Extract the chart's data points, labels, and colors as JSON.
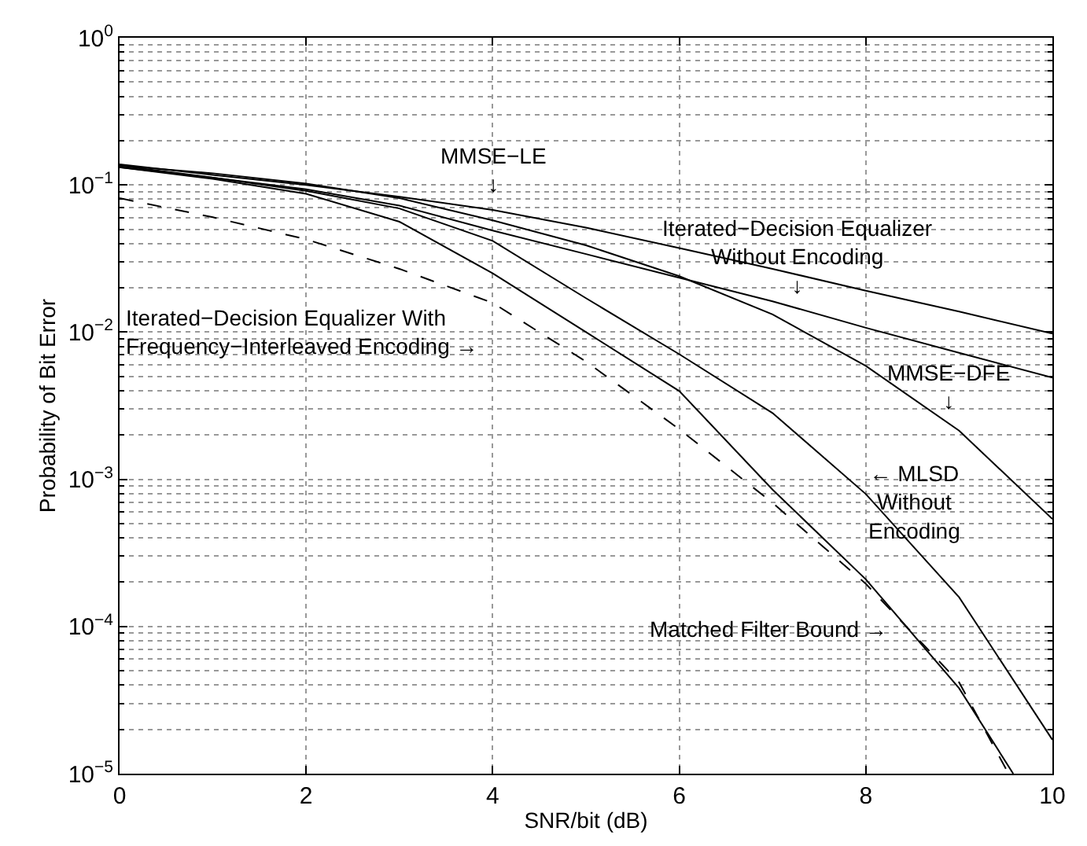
{
  "chart_data": {
    "type": "line",
    "xlabel": "SNR/bit (dB)",
    "ylabel": "Probability of Bit Error",
    "log": "y",
    "grid": true,
    "marker": "none",
    "xlim": [
      0,
      10
    ],
    "xticks": [
      0,
      2,
      4,
      6,
      8,
      10
    ],
    "ylim": [
      1e-05,
      1
    ],
    "yticks": [
      {
        "value": 1e-05,
        "label": "10$^{−5}$"
      },
      {
        "value": 0.0001,
        "label": "10$^{−4}$"
      },
      {
        "value": 0.001,
        "label": "10$^{−3}$"
      },
      {
        "value": 0.01,
        "label": "10$^{−2}$"
      },
      {
        "value": 0.1,
        "label": "10$^{−1}$"
      },
      {
        "value": 1,
        "label": "10$^{0}$"
      }
    ],
    "series": [
      {
        "color": "#000000",
        "line_style": "solid",
        "x": [
          0,
          1,
          2,
          3,
          4,
          5,
          6,
          7,
          8,
          9,
          10
        ],
        "values": [
          0.138,
          0.117,
          0.1,
          0.0832,
          0.0676,
          0.0513,
          0.0372,
          0.0269,
          0.0191,
          0.0138,
          0.00977
        ]
      },
      {
        "color": "#000000",
        "line_style": "solid",
        "x": [
          0,
          1,
          2,
          3,
          4,
          5,
          6,
          7,
          8,
          9,
          10
        ],
        "values": [
          0.132,
          0.112,
          0.0933,
          0.0724,
          0.049,
          0.0339,
          0.0234,
          0.0162,
          0.0107,
          0.00724,
          0.0049
        ]
      },
      {
        "color": "#000000",
        "line_style": "solid",
        "x": [
          0,
          1,
          2,
          3,
          4,
          5,
          6,
          7,
          8,
          9,
          10
        ],
        "values": [
          0.135,
          0.12,
          0.102,
          0.0813,
          0.0575,
          0.0389,
          0.024,
          0.0132,
          0.00589,
          0.00214,
          0.000537
        ]
      },
      {
        "color": "#000000",
        "line_style": "solid",
        "x": [
          0,
          1,
          2,
          3,
          4,
          5,
          6,
          7,
          8,
          9,
          10
        ],
        "values": [
          0.135,
          0.112,
          0.0912,
          0.0692,
          0.0417,
          0.017,
          0.00708,
          0.00282,
          0.000794,
          0.000158,
          1.7e-05
        ]
      },
      {
        "color": "#000000",
        "line_style": "solid",
        "x": [
          0,
          1,
          2,
          3,
          4,
          5,
          6,
          7,
          8,
          9,
          9.58
        ],
        "values": [
          0.132,
          0.11,
          0.0871,
          0.0562,
          0.0251,
          0.01,
          0.00398,
          0.000851,
          0.000209,
          3.8e-05,
          1e-05
        ]
      },
      {
        "color": "#000000",
        "line_style": "dashed",
        "x": [
          0,
          1,
          2,
          3,
          4,
          5,
          6,
          7,
          8,
          9,
          9.53
        ],
        "values": [
          0.0813,
          0.0603,
          0.0427,
          0.0269,
          0.0158,
          0.00631,
          0.00219,
          0.000692,
          0.000195,
          4.17e-05,
          1e-05
        ]
      }
    ],
    "annotations": [
      "MMSE−LE\n↓",
      "Iterated−Decision Equalizer\nWithout Encoding\n↓",
      "MMSE−DFE\n↓",
      "← MLSD\nWithout\nEncoding",
      "Iterated−Decision Equalizer With\nFrequency−Interleaved Encoding →",
      "Matched Filter Bound →"
    ]
  }
}
